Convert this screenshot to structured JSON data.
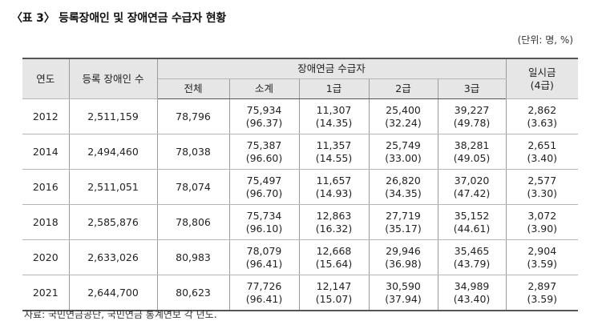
{
  "title": "〈표 3〉 등록장애인 및 장애연금 수급자 현황",
  "unit": "(단위: 명, %)",
  "headers": {
    "year": "연도",
    "registered": "등록 장애인 수",
    "recipients": "장애연금 수급자",
    "total": "전체",
    "subtotal": "소계",
    "grade1": "1급",
    "grade2": "2급",
    "grade3": "3급",
    "lump_line1": "일시금",
    "lump_line2": "(4급)"
  },
  "rows": [
    {
      "year": "2012",
      "registered": "2,511,159",
      "total": "78,796",
      "subtotal": "75,934",
      "subtotal_pct": "(96.37)",
      "grade1": "11,307",
      "grade1_pct": "(14.35)",
      "grade2": "25,400",
      "grade2_pct": "(32.24)",
      "grade3": "39,227",
      "grade3_pct": "(49.78)",
      "lump": "2,862",
      "lump_pct": "(3.63)"
    },
    {
      "year": "2014",
      "registered": "2,494,460",
      "total": "78,038",
      "subtotal": "75,387",
      "subtotal_pct": "(96.60)",
      "grade1": "11,357",
      "grade1_pct": "(14.55)",
      "grade2": "25,749",
      "grade2_pct": "(33.00)",
      "grade3": "38,281",
      "grade3_pct": "(49.05)",
      "lump": "2,651",
      "lump_pct": "(3.40)"
    },
    {
      "year": "2016",
      "registered": "2,511,051",
      "total": "78,074",
      "subtotal": "75,497",
      "subtotal_pct": "(96.70)",
      "grade1": "11,657",
      "grade1_pct": "(14.93)",
      "grade2": "26,820",
      "grade2_pct": "(34.35)",
      "grade3": "37,020",
      "grade3_pct": "(47.42)",
      "lump": "2,577",
      "lump_pct": "(3.30)"
    },
    {
      "year": "2018",
      "registered": "2,585,876",
      "total": "78,806",
      "subtotal": "75,734",
      "subtotal_pct": "(96.10)",
      "grade1": "12,863",
      "grade1_pct": "(16.32)",
      "grade2": "27,719",
      "grade2_pct": "(35.17)",
      "grade3": "35,152",
      "grade3_pct": "(44.61)",
      "lump": "3,072",
      "lump_pct": "(3.90)"
    },
    {
      "year": "2020",
      "registered": "2,633,026",
      "total": "80,983",
      "subtotal": "78,079",
      "subtotal_pct": "(96.41)",
      "grade1": "12,668",
      "grade1_pct": "(15.64)",
      "grade2": "29,946",
      "grade2_pct": "(36.98)",
      "grade3": "35,465",
      "grade3_pct": "(43.79)",
      "lump": "2,904",
      "lump_pct": "(3.59)"
    },
    {
      "year": "2021",
      "registered": "2,644,700",
      "total": "80,623",
      "subtotal": "77,726",
      "subtotal_pct": "(96.41)",
      "grade1": "12,147",
      "grade1_pct": "(15.07)",
      "grade2": "30,590",
      "grade2_pct": "(37.94)",
      "grade3": "34,989",
      "grade3_pct": "(43.40)",
      "lump": "2,897",
      "lump_pct": "(3.59)"
    }
  ],
  "source": "자료: 국민연금공단, 국민연금 통계연보 각 년도."
}
